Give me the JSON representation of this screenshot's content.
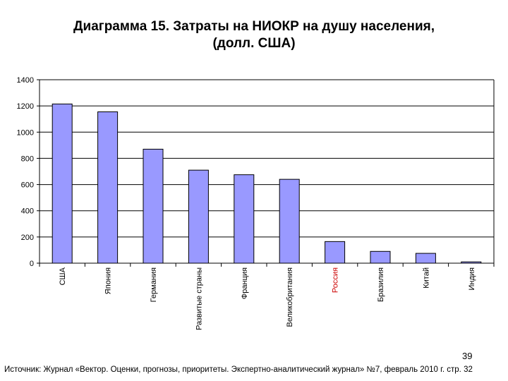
{
  "slide": {
    "title_line1": "Диаграмма 15. Затраты на НИОКР на душу населения,",
    "title_line2": "(долл. США)",
    "page_number": "39",
    "source": "Источник: Журнал «Вектор. Оценки, прогнозы, приоритеты. Экспертно-аналитический журнал» №7, февраль 2010 г. стр. 32"
  },
  "chart_data": {
    "type": "bar",
    "title": "Диаграмма 15. Затраты на НИОКР на душу населения, (долл. США)",
    "xlabel": "",
    "ylabel": "",
    "categories": [
      "США",
      "Япония",
      "Германия",
      "Развитые страны",
      "Франция",
      "Великобритания",
      "Россия",
      "Бразилия",
      "Китай",
      "Индия"
    ],
    "values": [
      1215,
      1155,
      870,
      710,
      675,
      640,
      165,
      90,
      75,
      10
    ],
    "ylim": [
      0,
      1400
    ],
    "yticks": [
      "0",
      "200",
      "400",
      "600",
      "800",
      "1000",
      "1200",
      "1400"
    ],
    "grid": true,
    "legend": "none",
    "colors": {
      "bar": "#9999ff",
      "bar_outline": "#000000",
      "grid": "#000000",
      "label": "#000000",
      "highlight_label": "#cc0000"
    },
    "highlight_category": "Россия"
  }
}
